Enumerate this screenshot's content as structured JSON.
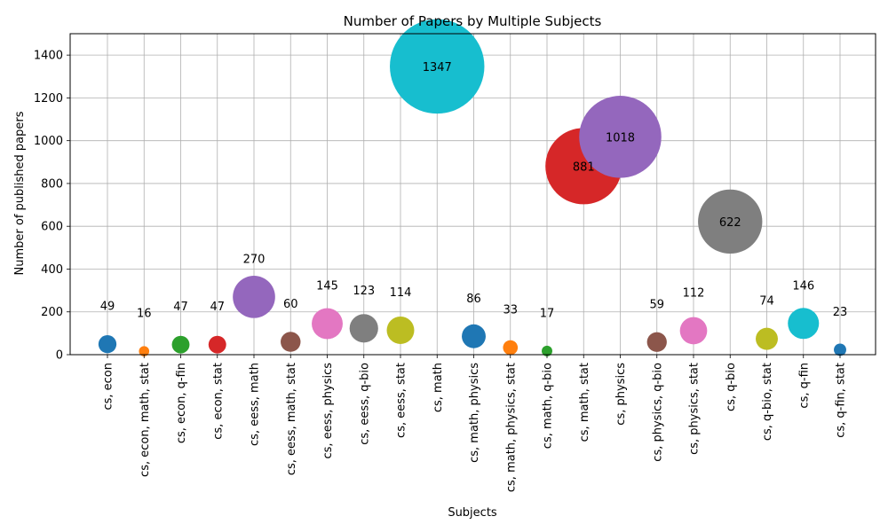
{
  "chart_data": {
    "type": "scatter",
    "title": "Number of Papers by Multiple Subjects",
    "xlabel": "Subjects",
    "ylabel": "Number of published papers",
    "ylim": [
      0,
      1500
    ],
    "yticks": [
      "0",
      "200",
      "400",
      "600",
      "800",
      "1000",
      "1200",
      "1400"
    ],
    "grid": true,
    "categories": [
      "cs, econ",
      "cs, econ, math, stat",
      "cs, econ, q-fin",
      "cs, econ, stat",
      "cs, eess, math",
      "cs, eess, math, stat",
      "cs, eess, physics",
      "cs, eess, q-bio",
      "cs, eess, stat",
      "cs, math",
      "cs, math, physics",
      "cs, math, physics, stat",
      "cs, math, q-bio",
      "cs, math, stat",
      "cs, physics",
      "cs, physics, q-bio",
      "cs, physics, stat",
      "cs, q-bio",
      "cs, q-bio, stat",
      "cs, q-fin",
      "cs, q-fin, stat"
    ],
    "values": [
      49,
      16,
      47,
      47,
      270,
      60,
      145,
      123,
      114,
      1347,
      86,
      33,
      17,
      881,
      1018,
      59,
      112,
      622,
      74,
      146,
      23
    ],
    "data_labels": [
      "49",
      "16",
      "47",
      "47",
      "270",
      "60",
      "145",
      "123",
      "114",
      "1347",
      "86",
      "33",
      "17",
      "881",
      "1018",
      "59",
      "112",
      "622",
      "74",
      "146",
      "23"
    ],
    "colors": [
      "#1f77b4",
      "#ff7f0e",
      "#2ca02c",
      "#d62728",
      "#9467bd",
      "#8c564b",
      "#e377c2",
      "#7f7f7f",
      "#bcbd22",
      "#17becf"
    ]
  }
}
